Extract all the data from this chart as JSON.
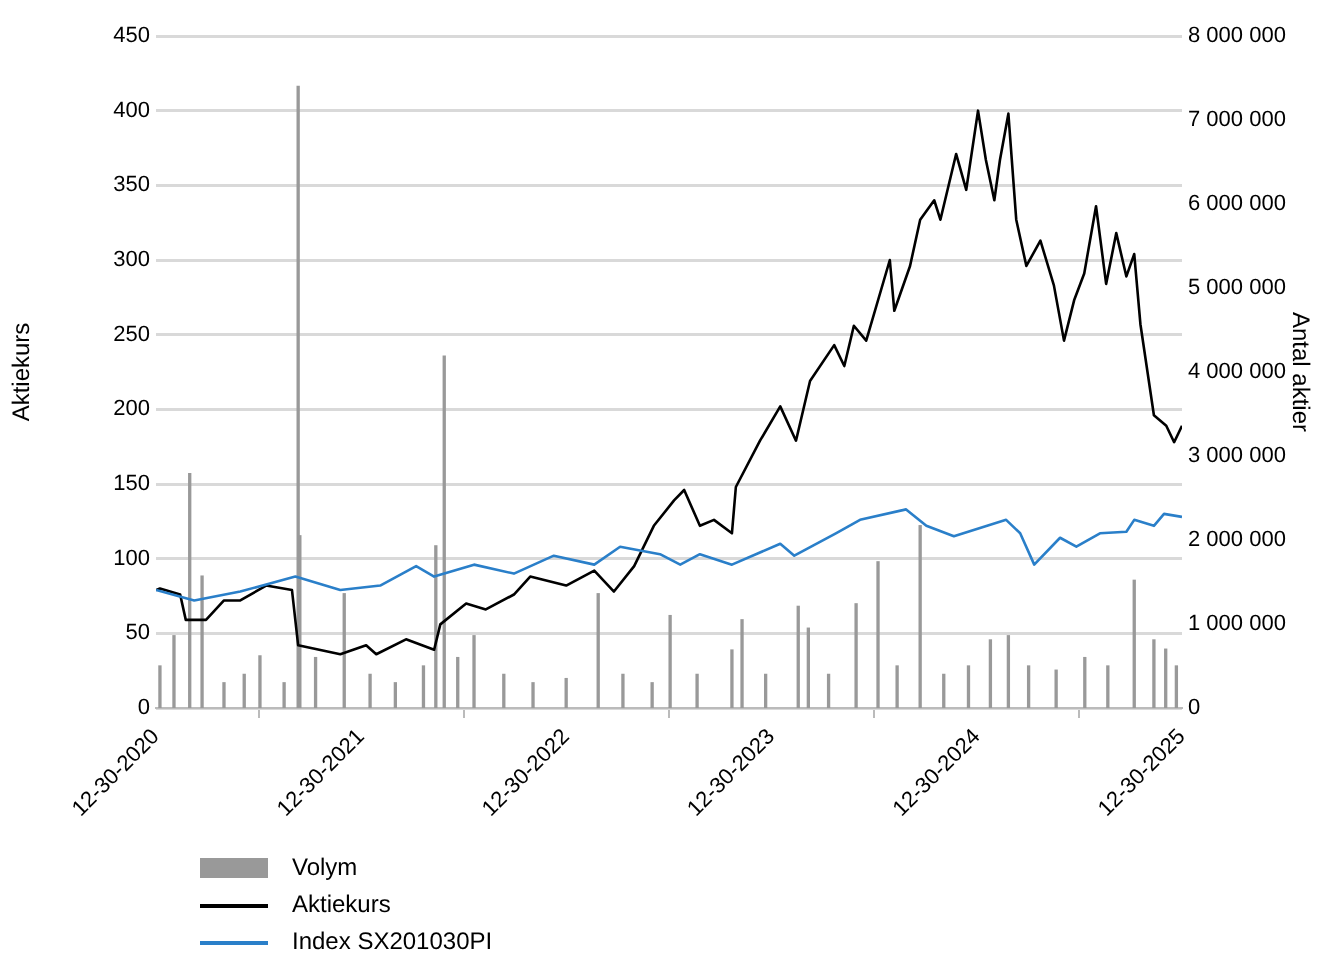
{
  "chart_data": {
    "type": "line",
    "ylabel": "Aktiekurs",
    "y2label": "Antal aktier",
    "xlim": [
      "2020-12-30",
      "2025-12-30"
    ],
    "xticks": [
      {
        "value": "2020-12-30",
        "label": "12-30-2020"
      },
      {
        "value": "2021-12-30",
        "label": "12-30-2021"
      },
      {
        "value": "2022-12-30",
        "label": "12-30-2022"
      },
      {
        "value": "2023-12-30",
        "label": "12-30-2023"
      },
      {
        "value": "2024-12-30",
        "label": "12-30-2024"
      },
      {
        "value": "2025-12-30",
        "label": "12-30-2025"
      }
    ],
    "ylim": [
      0,
      450
    ],
    "yticks": [
      0,
      50,
      100,
      150,
      200,
      250,
      300,
      350,
      400,
      450
    ],
    "y2lim": [
      0,
      8000000
    ],
    "y2ticks": [
      0,
      {
        "value": 1000000,
        "label": "1 000 000"
      },
      {
        "value": 2000000,
        "label": "2 000 000"
      },
      {
        "value": 3000000,
        "label": "3 000 000"
      },
      {
        "value": 4000000,
        "label": "4 000 000"
      },
      {
        "value": 5000000,
        "label": "5 000 000"
      },
      {
        "value": 6000000,
        "label": "6 000 000"
      },
      {
        "value": 7000000,
        "label": "7 000 000"
      },
      {
        "value": 8000000,
        "label": "8 000 000"
      }
    ],
    "grid": "y",
    "legend": "bottom left",
    "series": [
      {
        "name": "Volym",
        "type": "bar",
        "axis": "y2",
        "color": "#999999",
        "x": [
          "2021-01-06",
          "2021-01-31",
          "2021-02-28",
          "2021-03-22",
          "2021-04-30",
          "2021-06-05",
          "2021-07-03",
          "2021-08-15",
          "2021-09-09",
          "2021-09-12",
          "2021-10-10",
          "2021-11-30",
          "2022-01-15",
          "2022-03-01",
          "2022-04-20",
          "2022-05-12",
          "2022-05-27",
          "2022-06-20",
          "2022-07-19",
          "2022-09-10",
          "2022-11-01",
          "2022-12-30",
          "2023-02-25",
          "2023-04-10",
          "2023-06-01",
          "2023-07-03",
          "2023-08-20",
          "2023-10-21",
          "2023-11-08",
          "2023-12-20",
          "2024-02-16",
          "2024-03-05",
          "2024-04-10",
          "2024-05-29",
          "2024-07-07",
          "2024-08-10",
          "2024-09-20",
          "2024-11-01",
          "2024-12-15",
          "2025-01-23",
          "2025-02-24",
          "2025-04-01",
          "2025-05-20",
          "2025-07-10",
          "2025-08-20",
          "2025-10-06",
          "2025-11-10",
          "2025-12-01",
          "2025-12-20"
        ],
        "values": [
          500000,
          860000,
          2790000,
          1570000,
          300000,
          400000,
          620000,
          300000,
          7400000,
          2050000,
          600000,
          1360000,
          400000,
          300000,
          500000,
          1930000,
          4190000,
          600000,
          860000,
          400000,
          300000,
          350000,
          1360000,
          400000,
          300000,
          1100000,
          400000,
          690000,
          1050000,
          400000,
          1210000,
          950000,
          400000,
          1240000,
          1740000,
          500000,
          2170000,
          400000,
          500000,
          810000,
          860000,
          500000,
          450000,
          600000,
          500000,
          1520000,
          810000,
          700000,
          500000
        ]
      },
      {
        "name": "Aktiekurs",
        "color": "#000000",
        "x": [
          "2020-12-30",
          "2021-01-06",
          "2021-02-11",
          "2021-02-21",
          "2021-03-29",
          "2021-04-30",
          "2021-05-29",
          "2021-07-14",
          "2021-08-29",
          "2021-09-09",
          "2021-11-23",
          "2022-01-08",
          "2022-01-26",
          "2022-03-20",
          "2022-05-09",
          "2022-05-20",
          "2022-07-05",
          "2022-08-09",
          "2022-09-28",
          "2022-10-27",
          "2022-12-30",
          "2023-02-18",
          "2023-03-25",
          "2023-04-30",
          "2023-06-04",
          "2023-07-10",
          "2023-07-28",
          "2023-08-25",
          "2023-09-19",
          "2023-10-21",
          "2023-10-28",
          "2023-12-10",
          "2024-01-15",
          "2024-02-12",
          "2024-03-08",
          "2024-04-20",
          "2024-05-08",
          "2024-05-25",
          "2024-06-16",
          "2024-07-28",
          "2024-08-05",
          "2024-09-02",
          "2024-09-20",
          "2024-10-15",
          "2024-10-26",
          "2024-11-23",
          "2024-12-11",
          "2025-01-01",
          "2025-01-15",
          "2025-01-30",
          "2025-02-09",
          "2025-02-24",
          "2025-03-10",
          "2025-03-28",
          "2025-04-22",
          "2025-05-16",
          "2025-06-03",
          "2025-06-21",
          "2025-07-09",
          "2025-07-30",
          "2025-08-17",
          "2025-09-04",
          "2025-09-22",
          "2025-10-06",
          "2025-10-17",
          "2025-11-10",
          "2025-12-02",
          "2025-12-16",
          "2025-12-30"
        ],
        "values": [
          79,
          80,
          76,
          59,
          59,
          72,
          72,
          82,
          79,
          42,
          36,
          42,
          36,
          46,
          39,
          56,
          70,
          66,
          76,
          88,
          82,
          92,
          78,
          95,
          122,
          139,
          146,
          122,
          126,
          117,
          148,
          179,
          202,
          179,
          219,
          243,
          229,
          256,
          246,
          300,
          266,
          296,
          327,
          340,
          327,
          371,
          347,
          400,
          367,
          340,
          367,
          398,
          327,
          296,
          313,
          283,
          246,
          273,
          291,
          336,
          284,
          318,
          289,
          304,
          257,
          196,
          189,
          178,
          189
        ]
      },
      {
        "name": "Index SX201030PI",
        "color": "#2a7fc9",
        "x": [
          "2020-12-30",
          "2021-03-08",
          "2021-05-29",
          "2021-09-04",
          "2021-11-23",
          "2022-02-02",
          "2022-04-07",
          "2022-05-09",
          "2022-07-19",
          "2022-09-28",
          "2022-12-08",
          "2023-02-18",
          "2023-04-05",
          "2023-06-15",
          "2023-07-21",
          "2023-08-25",
          "2023-10-21",
          "2024-01-15",
          "2024-02-09",
          "2024-04-23",
          "2024-06-05",
          "2024-08-26",
          "2024-10-01",
          "2024-11-19",
          "2025-02-20",
          "2025-03-17",
          "2025-04-11",
          "2025-05-27",
          "2025-06-25",
          "2025-08-06",
          "2025-09-22",
          "2025-10-06",
          "2025-11-10",
          "2025-11-28",
          "2025-12-30"
        ],
        "values": [
          79,
          72,
          78,
          88,
          79,
          82,
          95,
          88,
          96,
          90,
          102,
          96,
          108,
          103,
          96,
          103,
          96,
          110,
          102,
          117,
          126,
          133,
          122,
          115,
          126,
          117,
          96,
          114,
          108,
          117,
          118,
          126,
          122,
          130,
          128
        ]
      }
    ]
  }
}
